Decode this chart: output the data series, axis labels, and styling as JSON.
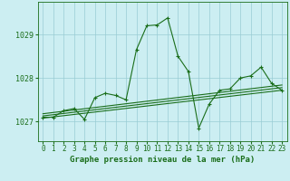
{
  "title": "Graphe pression niveau de la mer (hPa)",
  "background_color": "#cceef2",
  "grid_color": "#99ccd4",
  "line_color": "#1a6e1a",
  "xlim": [
    -0.5,
    23.5
  ],
  "ylim": [
    1026.55,
    1029.75
  ],
  "yticks": [
    1027,
    1028,
    1029
  ],
  "xticks": [
    0,
    1,
    2,
    3,
    4,
    5,
    6,
    7,
    8,
    9,
    10,
    11,
    12,
    13,
    14,
    15,
    16,
    17,
    18,
    19,
    20,
    21,
    22,
    23
  ],
  "series1": {
    "x": [
      0,
      1,
      2,
      3,
      4,
      5,
      6,
      7,
      8,
      9,
      10,
      11,
      12,
      13,
      14,
      15,
      16,
      17,
      18,
      19,
      20,
      21,
      22,
      23
    ],
    "y": [
      1027.1,
      1027.1,
      1027.25,
      1027.3,
      1027.05,
      1027.55,
      1027.65,
      1027.6,
      1027.5,
      1028.65,
      1029.2,
      1029.22,
      1029.38,
      1028.5,
      1028.15,
      1026.85,
      1027.4,
      1027.72,
      1027.75,
      1028.0,
      1028.05,
      1028.25,
      1027.88,
      1027.72
    ]
  },
  "series2": {
    "x": [
      0,
      23
    ],
    "y": [
      1027.08,
      1027.72
    ]
  },
  "series3": {
    "x": [
      0,
      23
    ],
    "y": [
      1027.13,
      1027.78
    ]
  },
  "series4": {
    "x": [
      0,
      23
    ],
    "y": [
      1027.18,
      1027.84
    ]
  },
  "tick_fontsize": 5.5,
  "title_fontsize": 6.5
}
